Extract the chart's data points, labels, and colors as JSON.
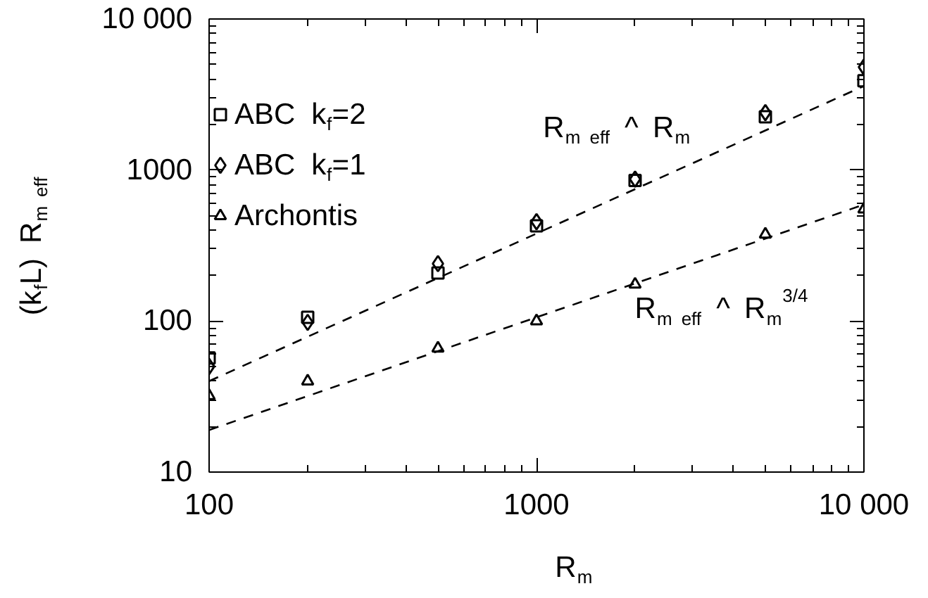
{
  "chart_data": {
    "type": "scatter",
    "xlabel": "R$_{m}$",
    "ylabel": "(k$_{f}$L) R$_{m eff}$",
    "log": "xy",
    "xlim": [
      100,
      10000
    ],
    "ylim": [
      10,
      10000
    ],
    "xticks": [
      100,
      1000,
      {
        "value": 10000,
        "label": "10 000"
      }
    ],
    "yticks": [
      10,
      100,
      1000,
      {
        "value": 10000,
        "label": "10 000"
      }
    ],
    "legend": "top left",
    "grid": false,
    "series": [
      {
        "name": "ABC k$_{f}$=2",
        "color": "#000000",
        "marker": "square",
        "x": [
          100,
          200,
          500,
          1000,
          2000,
          5000,
          10000
        ],
        "values": [
          57,
          106,
          208,
          427,
          852,
          2250,
          3900
        ]
      },
      {
        "name": "ABC k$_{f}$=1",
        "color": "#000000",
        "marker": "diamond",
        "x": [
          100,
          200,
          500,
          1000,
          2000,
          5000,
          10000
        ],
        "values": [
          50,
          98,
          240,
          455,
          870,
          2400,
          4800
        ]
      },
      {
        "name": "Archontis",
        "color": "#000000",
        "marker": "triangle",
        "x": [
          100,
          200,
          500,
          1000,
          2000,
          5000,
          10000
        ],
        "values": [
          32,
          40,
          66,
          100,
          175,
          375,
          550
        ]
      },
      {
        "type": "line",
        "line_style": "dashed",
        "color": "#000000",
        "x": [
          100,
          10000
        ],
        "values": [
          40,
          3600
        ]
      },
      {
        "type": "line",
        "line_style": "dashed",
        "color": "#000000",
        "x": [
          100,
          10000
        ],
        "values": [
          19,
          590
        ]
      }
    ],
    "annotations": [
      "R$_{m eff}$ ^ R$_{m}$",
      "R$_{m eff}$ ^ R$_{m}$$^{3/4}$"
    ]
  }
}
